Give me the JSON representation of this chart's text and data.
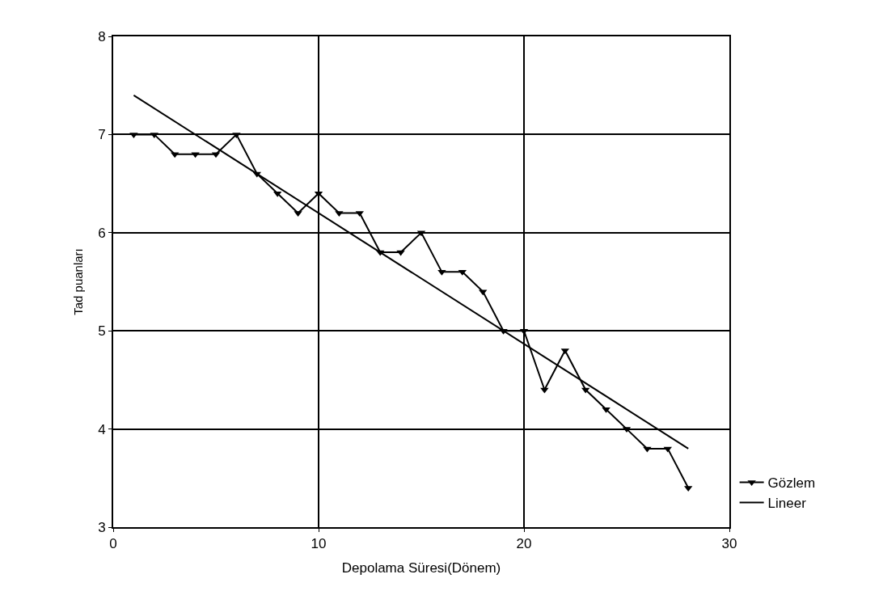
{
  "chart_data": {
    "type": "line",
    "xlabel": "Depolama Süresi(Dönem)",
    "ylabel": "Tad puanları",
    "x": [
      1,
      2,
      3,
      4,
      5,
      6,
      7,
      8,
      9,
      10,
      11,
      12,
      13,
      14,
      15,
      16,
      17,
      18,
      19,
      20,
      21,
      22,
      23,
      24,
      25,
      26,
      27,
      28
    ],
    "series": [
      {
        "name": "Gözlem",
        "color": "#000000",
        "marker": "triangle",
        "values": [
          7.0,
          7.0,
          6.8,
          6.8,
          6.8,
          7.0,
          6.6,
          6.4,
          6.2,
          6.4,
          6.2,
          6.2,
          5.8,
          5.8,
          6.0,
          5.6,
          5.6,
          5.4,
          5.0,
          5.0,
          4.4,
          4.8,
          4.4,
          4.2,
          4.0,
          3.8,
          3.8,
          3.4
        ]
      },
      {
        "name": "Lineer",
        "color": "#000000",
        "marker": "none",
        "x": [
          1,
          28
        ],
        "values": [
          7.4,
          3.8
        ]
      }
    ],
    "xlim": [
      0,
      30
    ],
    "xticks": [
      0,
      10,
      20,
      30
    ],
    "ylim": [
      3,
      8
    ],
    "yticks": [
      3,
      4,
      5,
      6,
      7,
      8
    ],
    "grid": true,
    "legend": "bottom right",
    "line_style": "solid"
  }
}
